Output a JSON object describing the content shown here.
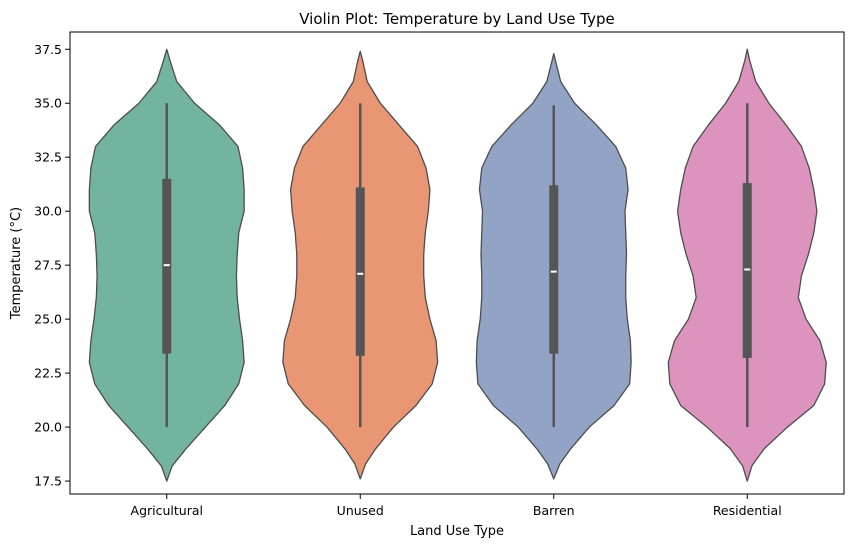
{
  "chart_data": {
    "type": "violin",
    "title": "Violin Plot: Temperature by Land Use Type",
    "xlabel": "Land Use Type",
    "ylabel": "Temperature (°C)",
    "ylim": [
      16.9,
      38.3
    ],
    "yticks": [
      17.5,
      20.0,
      22.5,
      25.0,
      27.5,
      30.0,
      32.5,
      35.0,
      37.5
    ],
    "grid": false,
    "legend": "none",
    "categories": [
      "Agricultural",
      "Unused",
      "Barren",
      "Residential"
    ],
    "colors": [
      "#72b4a0",
      "#e89674",
      "#93a3c5",
      "#dc93be"
    ],
    "series": [
      {
        "category": "Agricultural",
        "min": 20.0,
        "q1": 23.4,
        "median": 27.5,
        "q3": 31.5,
        "max": 35.0,
        "density": [
          [
            17.5,
            0.0
          ],
          [
            18.2,
            0.07
          ],
          [
            19.0,
            0.25
          ],
          [
            20.0,
            0.5
          ],
          [
            21.0,
            0.75
          ],
          [
            22.0,
            0.93
          ],
          [
            23.0,
            1.0
          ],
          [
            24.0,
            0.98
          ],
          [
            25.0,
            0.94
          ],
          [
            26.0,
            0.91
          ],
          [
            27.0,
            0.9
          ],
          [
            28.0,
            0.91
          ],
          [
            29.0,
            0.93
          ],
          [
            30.0,
            1.0
          ],
          [
            31.0,
            1.0
          ],
          [
            32.0,
            0.98
          ],
          [
            33.0,
            0.92
          ],
          [
            34.0,
            0.68
          ],
          [
            35.0,
            0.36
          ],
          [
            36.0,
            0.13
          ],
          [
            37.0,
            0.04
          ],
          [
            37.5,
            0.0
          ]
        ]
      },
      {
        "category": "Unused",
        "min": 20.0,
        "q1": 23.3,
        "median": 27.1,
        "q3": 31.1,
        "max": 35.0,
        "density": [
          [
            17.6,
            0.0
          ],
          [
            18.3,
            0.07
          ],
          [
            19.0,
            0.2
          ],
          [
            20.0,
            0.43
          ],
          [
            21.0,
            0.72
          ],
          [
            22.0,
            0.93
          ],
          [
            23.0,
            1.0
          ],
          [
            24.0,
            0.98
          ],
          [
            25.0,
            0.9
          ],
          [
            26.0,
            0.84
          ],
          [
            27.0,
            0.82
          ],
          [
            28.0,
            0.82
          ],
          [
            29.0,
            0.84
          ],
          [
            30.0,
            0.88
          ],
          [
            31.0,
            0.9
          ],
          [
            32.0,
            0.85
          ],
          [
            33.0,
            0.74
          ],
          [
            34.0,
            0.5
          ],
          [
            35.0,
            0.26
          ],
          [
            36.0,
            0.09
          ],
          [
            37.0,
            0.03
          ],
          [
            37.4,
            0.0
          ]
        ]
      },
      {
        "category": "Barren",
        "min": 20.0,
        "q1": 23.4,
        "median": 27.2,
        "q3": 31.2,
        "max": 34.9,
        "density": [
          [
            17.6,
            0.0
          ],
          [
            18.3,
            0.08
          ],
          [
            19.0,
            0.22
          ],
          [
            20.0,
            0.46
          ],
          [
            21.0,
            0.78
          ],
          [
            22.0,
            0.98
          ],
          [
            23.0,
            1.0
          ],
          [
            24.0,
            0.99
          ],
          [
            25.0,
            0.95
          ],
          [
            26.0,
            0.93
          ],
          [
            27.0,
            0.93
          ],
          [
            28.0,
            0.94
          ],
          [
            29.0,
            0.93
          ],
          [
            30.0,
            0.92
          ],
          [
            31.0,
            0.96
          ],
          [
            32.0,
            0.93
          ],
          [
            33.0,
            0.8
          ],
          [
            34.0,
            0.55
          ],
          [
            35.0,
            0.27
          ],
          [
            36.0,
            0.09
          ],
          [
            37.0,
            0.02
          ],
          [
            37.3,
            0.0
          ]
        ]
      },
      {
        "category": "Residential",
        "min": 20.0,
        "q1": 23.2,
        "median": 27.3,
        "q3": 31.3,
        "max": 35.0,
        "density": [
          [
            17.5,
            0.0
          ],
          [
            18.2,
            0.06
          ],
          [
            19.0,
            0.22
          ],
          [
            20.0,
            0.52
          ],
          [
            21.0,
            0.86
          ],
          [
            22.0,
            1.0
          ],
          [
            23.0,
            1.02
          ],
          [
            24.0,
            0.94
          ],
          [
            25.0,
            0.76
          ],
          [
            26.0,
            0.66
          ],
          [
            27.0,
            0.7
          ],
          [
            28.0,
            0.79
          ],
          [
            29.0,
            0.86
          ],
          [
            30.0,
            0.9
          ],
          [
            31.0,
            0.86
          ],
          [
            32.0,
            0.8
          ],
          [
            33.0,
            0.7
          ],
          [
            34.0,
            0.5
          ],
          [
            35.0,
            0.28
          ],
          [
            36.0,
            0.11
          ],
          [
            37.0,
            0.03
          ],
          [
            37.5,
            0.0
          ]
        ]
      }
    ]
  }
}
